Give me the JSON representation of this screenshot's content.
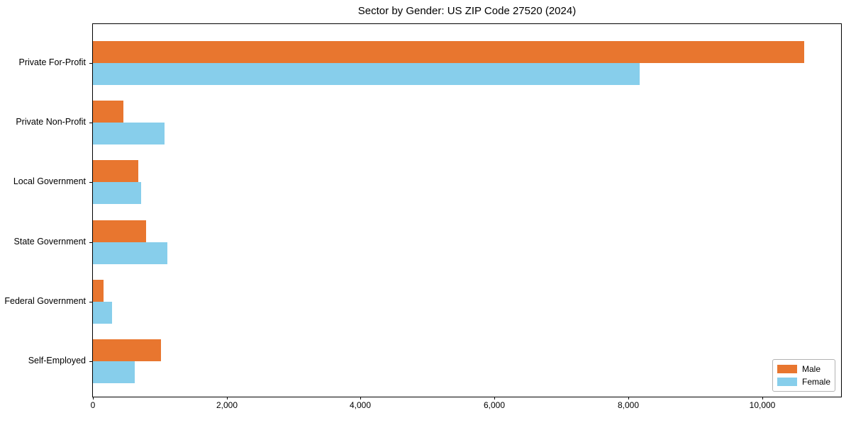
{
  "title": "Sector by Gender: US ZIP Code 27520 (2024)",
  "colors": {
    "male": "#e8762f",
    "female": "#87ceeb",
    "axis": "#000000",
    "legend_border": "#b3b3b3",
    "background": "#ffffff"
  },
  "legend": {
    "items": [
      {
        "label": "Male",
        "color_key": "male"
      },
      {
        "label": "Female",
        "color_key": "female"
      }
    ]
  },
  "chart_data": {
    "type": "bar",
    "orientation": "horizontal",
    "title": "Sector by Gender: US ZIP Code 27520 (2024)",
    "categories": [
      "Private For-Profit",
      "Private Non-Profit",
      "Local Government",
      "State Government",
      "Federal Government",
      "Self-Employed"
    ],
    "series": [
      {
        "name": "Male",
        "color": "#e8762f",
        "values": [
          10630,
          455,
          680,
          800,
          160,
          1015
        ]
      },
      {
        "name": "Female",
        "color": "#87ceeb",
        "values": [
          8170,
          1070,
          720,
          1110,
          285,
          625
        ]
      }
    ],
    "xlabel": "",
    "ylabel": "",
    "xlim": [
      0,
      11180
    ],
    "xticks": [
      0,
      2000,
      4000,
      6000,
      8000,
      10000
    ],
    "xtick_labels": [
      "0",
      "2,000",
      "4,000",
      "6,000",
      "8,000",
      "10,000"
    ],
    "grid": false,
    "legend_position": "lower right",
    "frame": "full-box"
  }
}
